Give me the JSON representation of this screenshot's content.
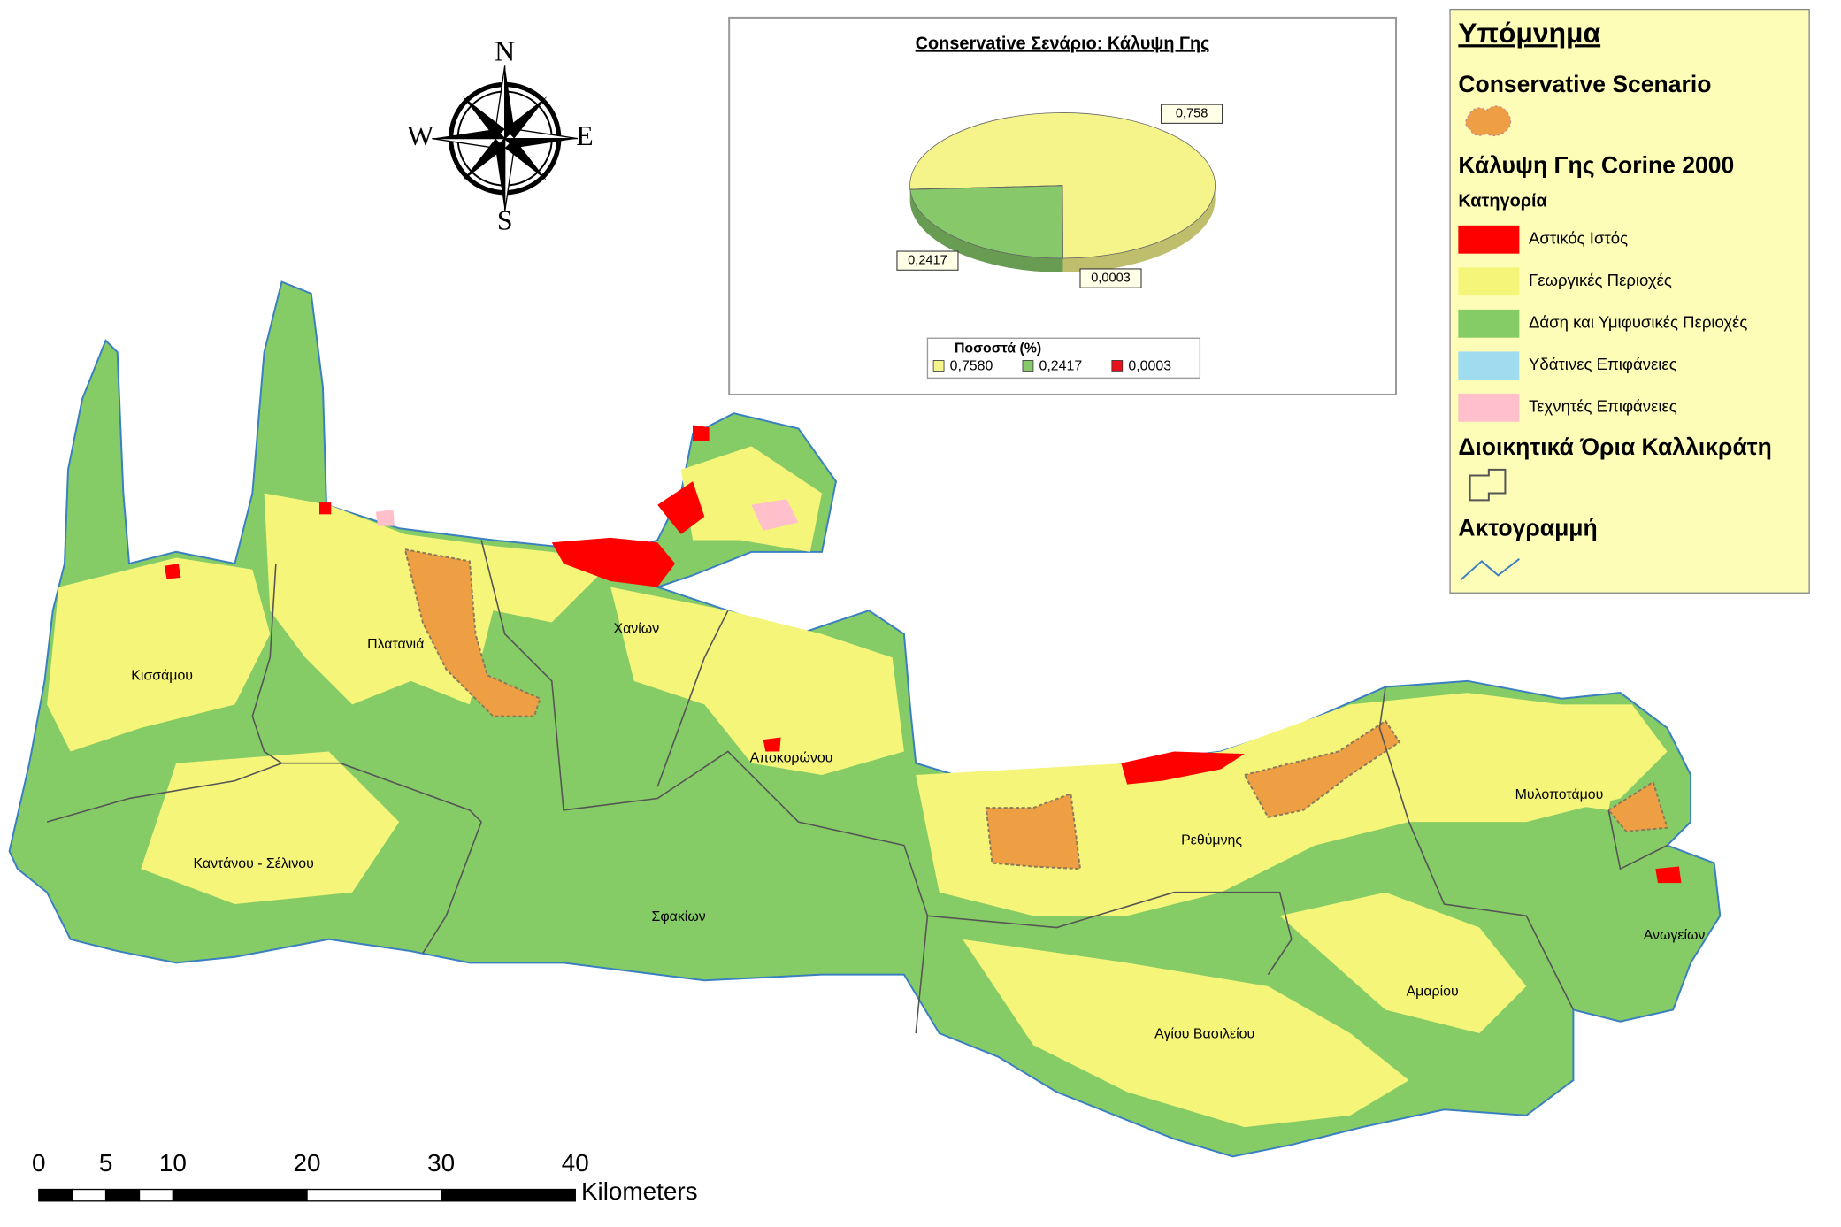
{
  "compass": {
    "north": "N",
    "south": "S",
    "west": "W",
    "east": "E"
  },
  "chart_data": {
    "type": "pie",
    "title": "Conservative Σενάριο: Κάλυψη Γης",
    "categories": [
      "0,7580",
      "0,2417",
      "0,0003"
    ],
    "values": [
      0.758,
      0.2417,
      0.0003
    ],
    "value_labels": [
      "0,758",
      "0,2417",
      "0,0003"
    ],
    "colors": [
      "#f4f48a",
      "#86c86a",
      "#e8101c"
    ],
    "legend_title": "Ποσοστά (%)"
  },
  "legend": {
    "title": "Υπόμνημα",
    "scenario_heading": "Conservative Scenario",
    "landcover_heading": "Κάλυψη Γης Corine 2000",
    "category_heading": "Κατηγορία",
    "categories": [
      {
        "label": "Αστικός Ιστός",
        "color": "#ff0000"
      },
      {
        "label": "Γεωργικές Περιοχές",
        "color": "#f5f57a"
      },
      {
        "label": "Δάση και Υμιφυσικές Περιοχές",
        "color": "#86cc66"
      },
      {
        "label": "Υδάτινες Επιφάνειες",
        "color": "#a0dcf0"
      },
      {
        "label": "Τεχνητές Επιφάνειες",
        "color": "#ffc0cb"
      }
    ],
    "admin_heading": "Διοικητικά Όρια Καλλικράτη",
    "coast_heading": "Ακτογραμμή"
  },
  "municipalities": [
    "Πλατανιά",
    "Χανίων",
    "Κισσάμου",
    "Αποκορώνου",
    "Καντάνου - Σέλινου",
    "Σφακίων",
    "Ρεθύμνης",
    "Μυλοποτάμου",
    "Ανωγείων",
    "Αμαρίου",
    "Αγίου Βασιλείου"
  ],
  "scale_bar": {
    "ticks": [
      0,
      5,
      10,
      20,
      30,
      40
    ],
    "range": [
      0,
      40
    ],
    "unit": "Kilometers"
  }
}
